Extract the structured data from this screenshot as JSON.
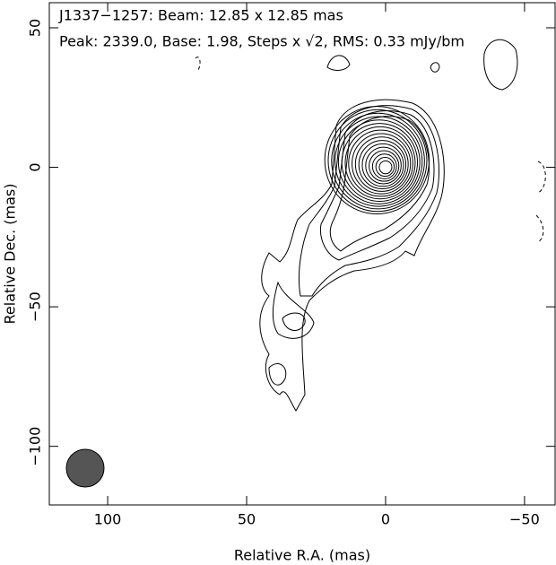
{
  "chart_data": {
    "type": "contour",
    "title": "J1337−1257: Beam: 12.85 x 12.85 mas",
    "subtitle": "Peak: 2339.0, Base: 1.98, Steps x √2, RMS: 0.33 mJy/bm",
    "x_label": "Relative R.A. (mas)",
    "y_label": "Relative Dec. (mas)",
    "xlim": [
      121,
      -61
    ],
    "ylim": [
      -121,
      59
    ],
    "xticks": [
      100,
      50,
      0,
      {
        "value": -50,
        "label": "−50"
      }
    ],
    "yticks": [
      {
        "value": -100,
        "label": "−100"
      },
      {
        "value": -50,
        "label": "−50"
      },
      0,
      50
    ],
    "color": "#000000"
  }
}
